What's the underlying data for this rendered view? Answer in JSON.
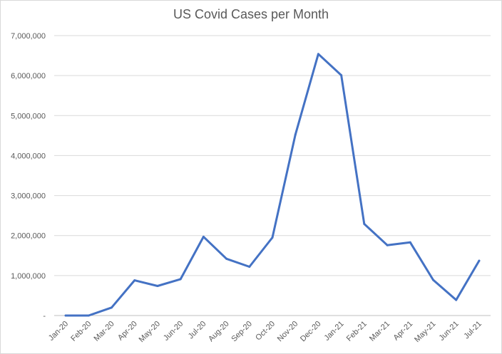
{
  "chart_data": {
    "type": "line",
    "title": "US Covid Cases per Month",
    "xlabel": "",
    "ylabel": "",
    "categories": [
      "Jan-20",
      "Feb-20",
      "Mar-20",
      "Apr-20",
      "May-20",
      "Jun-20",
      "Jul-20",
      "Aug-20",
      "Sep-20",
      "Oct-20",
      "Nov-20",
      "Dec-20",
      "Jan-21",
      "Feb-21",
      "Mar-21",
      "Apr-21",
      "May-21",
      "Jun-21",
      "Jul-21"
    ],
    "series": [
      {
        "values": [
          5,
          20,
          200000,
          880000,
          740000,
          910000,
          1970000,
          1420000,
          1220000,
          1950000,
          4520000,
          6540000,
          6010000,
          2290000,
          1760000,
          1830000,
          890000,
          390000,
          1370000
        ],
        "color": "#4472c4"
      }
    ],
    "ylim": [
      0,
      7000000
    ],
    "yticks": [
      0,
      1000000,
      2000000,
      3000000,
      4000000,
      5000000,
      6000000,
      7000000
    ],
    "ytick_labels": [
      "-",
      "1,000,000",
      "2,000,000",
      "3,000,000",
      "4,000,000",
      "5,000,000",
      "6,000,000",
      "7,000,000"
    ],
    "grid": true,
    "legend": "none"
  }
}
